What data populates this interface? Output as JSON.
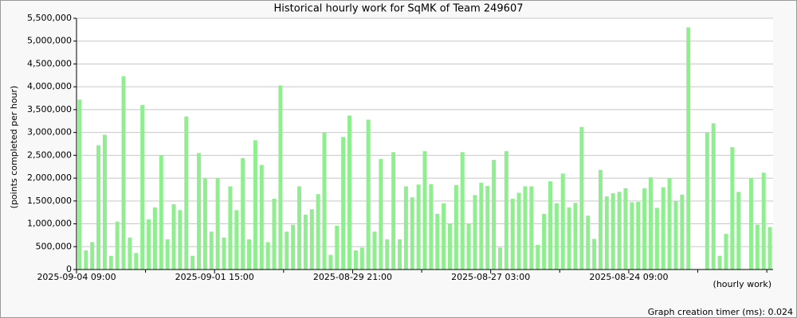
{
  "chart_data": {
    "type": "bar",
    "title": "Historical hourly work for SqMK of Team 249607",
    "y_label": "(points completed per hour)",
    "x_label": "(hourly work)",
    "footer": "Graph creation timer (ms): 0.024",
    "color": "#90ee90",
    "grid": true,
    "categories": [
      "2025-09-04 09:00",
      null,
      null,
      null,
      null,
      null,
      null,
      null,
      null,
      null,
      null,
      null,
      null,
      null,
      null,
      null,
      null,
      null,
      null,
      null,
      null,
      null,
      "2025-09-01 15:00",
      null,
      null,
      null,
      null,
      null,
      null,
      null,
      null,
      null,
      null,
      null,
      null,
      null,
      null,
      null,
      null,
      null,
      null,
      null,
      null,
      null,
      "2025-08-29 21:00",
      null,
      null,
      null,
      null,
      null,
      null,
      null,
      null,
      null,
      null,
      null,
      null,
      null,
      null,
      null,
      null,
      null,
      null,
      null,
      null,
      null,
      "2025-08-27 03:00",
      null,
      null,
      null,
      null,
      null,
      null,
      null,
      null,
      null,
      null,
      null,
      null,
      null,
      null,
      null,
      null,
      null,
      null,
      null,
      null,
      null,
      "2025-08-24 09:00",
      null,
      null,
      null,
      null,
      null,
      null,
      null,
      null,
      null,
      null,
      null,
      null,
      null,
      null,
      null,
      null,
      null,
      null,
      null,
      null,
      null,
      null
    ],
    "values": [
      3720000,
      420000,
      600000,
      2720000,
      2950000,
      300000,
      1050000,
      4230000,
      700000,
      360000,
      3600000,
      1100000,
      1360000,
      2500000,
      660000,
      1430000,
      1300000,
      3350000,
      300000,
      2550000,
      2000000,
      830000,
      2000000,
      700000,
      1820000,
      1300000,
      2440000,
      660000,
      2830000,
      2290000,
      600000,
      1550000,
      4030000,
      830000,
      980000,
      1820000,
      1200000,
      1320000,
      1650000,
      3000000,
      320000,
      960000,
      2900000,
      3370000,
      420000,
      480000,
      3280000,
      830000,
      2420000,
      660000,
      2570000,
      660000,
      1820000,
      1580000,
      1860000,
      2590000,
      1870000,
      1220000,
      1450000,
      1000000,
      1850000,
      2570000,
      1000000,
      1630000,
      1900000,
      1830000,
      2400000,
      480000,
      2590000,
      1550000,
      1680000,
      1820000,
      1820000,
      540000,
      1220000,
      1930000,
      1450000,
      2100000,
      1360000,
      1460000,
      3120000,
      1180000,
      670000,
      2180000,
      1600000,
      1670000,
      1700000,
      1780000,
      1470000,
      1480000,
      1780000,
      2020000,
      1350000,
      1800000,
      2000000,
      1500000,
      1640000,
      5300000,
      null,
      null,
      3000000,
      3200000,
      300000,
      780000,
      2680000,
      1700000,
      null,
      2000000,
      980000,
      2120000,
      930000
    ],
    "ylim": [
      0,
      5500000
    ],
    "yticks": [
      0,
      {
        "value": 500000,
        "label": "500,000"
      },
      {
        "value": 1000000,
        "label": "1,000,000"
      },
      {
        "value": 1500000,
        "label": "1,500,000"
      },
      {
        "value": 2000000,
        "label": "2,000,000"
      },
      {
        "value": 2500000,
        "label": "2,500,000"
      },
      {
        "value": 3000000,
        "label": "3,000,000"
      },
      {
        "value": 3500000,
        "label": "3,500,000"
      },
      {
        "value": 4000000,
        "label": "4,000,000"
      },
      {
        "value": 4500000,
        "label": "4,500,000"
      },
      {
        "value": 5000000,
        "label": "5,000,000"
      },
      {
        "value": 5500000,
        "label": "5,500,000"
      }
    ]
  }
}
